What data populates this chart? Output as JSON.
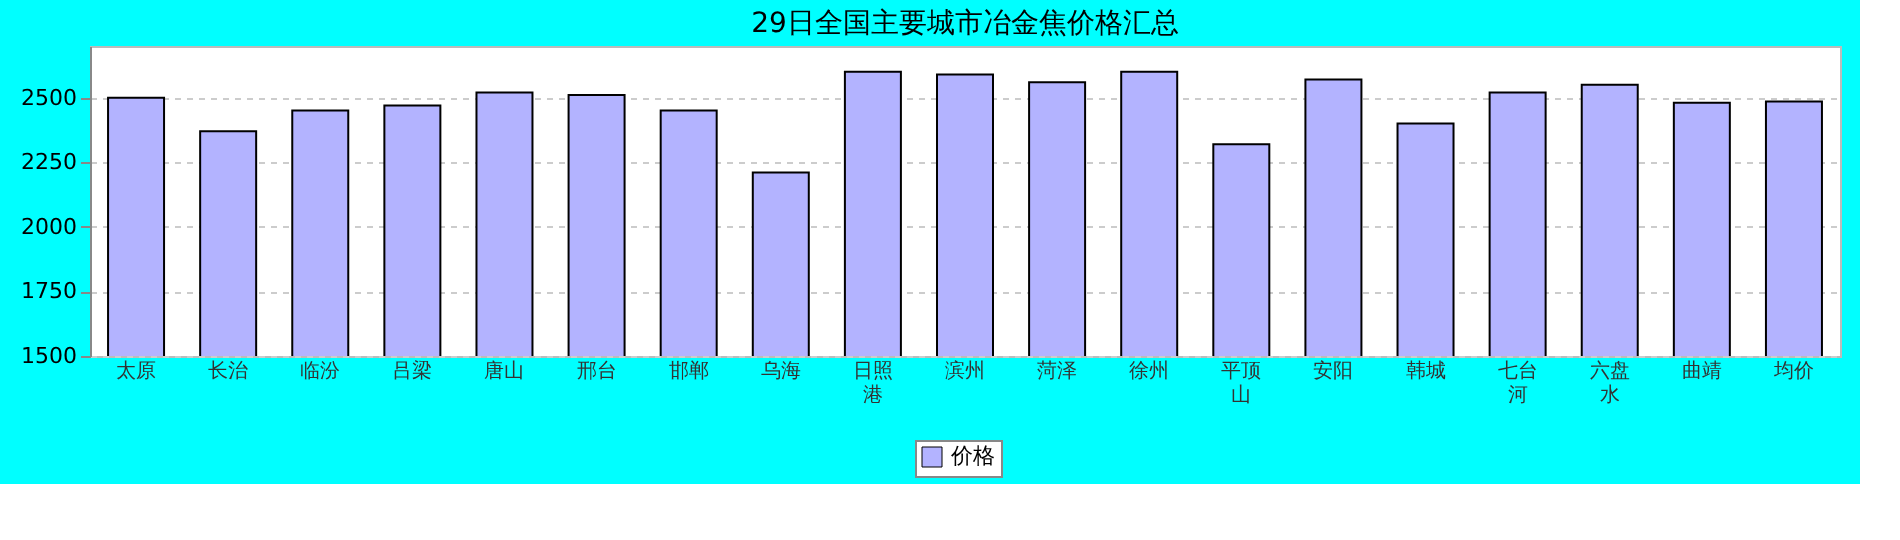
{
  "chart_data": {
    "type": "bar",
    "title": "29日全国主要城市冶金焦价格汇总",
    "categories": [
      "太原",
      "长治",
      "临汾",
      "吕梁",
      "唐山",
      "邢台",
      "邯郸",
      "乌海",
      "日照港",
      "滨州",
      "菏泽",
      "徐州",
      "平顶山",
      "安阳",
      "韩城",
      "七台河",
      "六盘水",
      "曲靖",
      "均价"
    ],
    "series": [
      {
        "name": "价格",
        "color": "#b3b3ff",
        "values": [
          2500,
          2370,
          2450,
          2470,
          2520,
          2510,
          2450,
          2210,
          2600,
          2590,
          2560,
          2600,
          2320,
          2570,
          2400,
          2520,
          2550,
          2480,
          2485
        ]
      }
    ],
    "ylim": [
      1500,
      2700
    ],
    "yticks": [
      1500,
      1750,
      2000,
      2250,
      2500
    ],
    "grid": "y",
    "legend": "bottom"
  }
}
